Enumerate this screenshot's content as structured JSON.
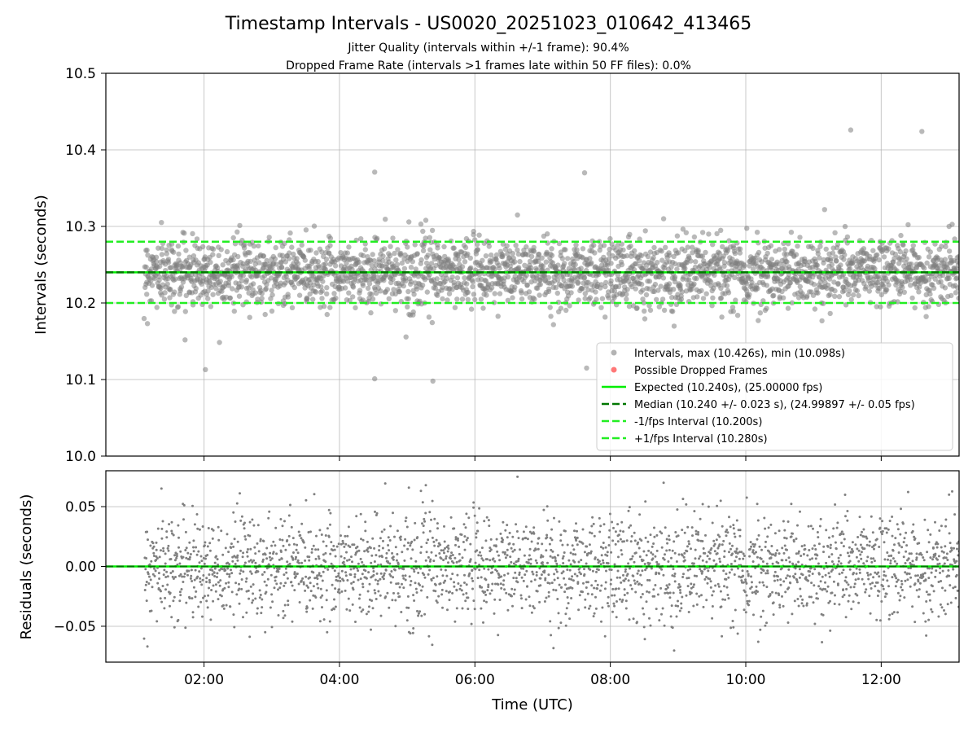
{
  "title": "Timestamp Intervals - US0020_20251023_010642_413465",
  "subtitle_1": "Jitter Quality (intervals within +/-1 frame): 90.4%",
  "subtitle_2": "Dropped Frame Rate (intervals >1 frames late within 50 FF files): 0.0%",
  "colors": {
    "points": "#808080",
    "dropped": "#ff5555",
    "expected": "#00ee00",
    "median": "#007700",
    "interval_band": "#22ee22",
    "grid": "#b0b0b0"
  },
  "chart_data": [
    {
      "type": "scatter",
      "name": "intervals",
      "ylabel": "Intervals (seconds)",
      "xlabel": "",
      "ylim": [
        10.0,
        10.5
      ],
      "yticks": [
        10.0,
        10.1,
        10.2,
        10.3,
        10.4,
        10.5
      ],
      "ytick_labels": [
        "10.0",
        "10.1",
        "10.2",
        "10.3",
        "10.4",
        "10.5"
      ],
      "xlim_hours": [
        0.55,
        13.15
      ],
      "xticks_hours": [
        2,
        4,
        6,
        8,
        10,
        12
      ],
      "grid": true,
      "legend_position": "lower-right",
      "series": [
        {
          "name": "Intervals",
          "label": "Intervals, max (10.426s), min (10.098s)",
          "max": 10.426,
          "min": 10.098,
          "center": 10.24,
          "spread": 0.023,
          "x_start_hours": 1.12,
          "x_end_hours": 13.15
        },
        {
          "name": "Possible Dropped Frames",
          "label": "Possible Dropped Frames",
          "count": 0
        }
      ],
      "reference_lines": [
        {
          "name": "expected",
          "label": "Expected (10.240s), (25.00000 fps)",
          "value": 10.24
        },
        {
          "name": "median",
          "label": "Median (10.240 +/- 0.023 s), (24.99897 +/- 0.05 fps)",
          "value": 10.24
        },
        {
          "name": "minus-interval",
          "label": "-1/fps Interval (10.200s)",
          "value": 10.2
        },
        {
          "name": "plus-interval",
          "label": "+1/fps Interval (10.280s)",
          "value": 10.28
        }
      ],
      "notable_points": [
        {
          "x_hours": 11.55,
          "y": 10.426
        },
        {
          "x_hours": 12.6,
          "y": 10.424
        },
        {
          "x_hours": 4.52,
          "y": 10.101
        },
        {
          "x_hours": 5.38,
          "y": 10.098
        },
        {
          "x_hours": 2.02,
          "y": 10.113
        },
        {
          "x_hours": 7.65,
          "y": 10.115
        },
        {
          "x_hours": 4.52,
          "y": 10.371
        },
        {
          "x_hours": 7.62,
          "y": 10.37
        }
      ]
    },
    {
      "type": "scatter",
      "name": "residuals",
      "ylabel": "Residuals (seconds)",
      "xlabel": "Time (UTC)",
      "ylim": [
        -0.08,
        0.08
      ],
      "yticks": [
        -0.05,
        0.0,
        0.05
      ],
      "ytick_labels": [
        "−0.05",
        "0.00",
        "0.05"
      ],
      "xticks_hours": [
        2,
        4,
        6,
        8,
        10,
        12
      ],
      "xtick_labels": [
        "02:00",
        "04:00",
        "06:00",
        "08:00",
        "10:00",
        "12:00"
      ],
      "grid": true,
      "reference_lines": [
        {
          "name": "zero",
          "value": 0.0
        }
      ]
    }
  ]
}
